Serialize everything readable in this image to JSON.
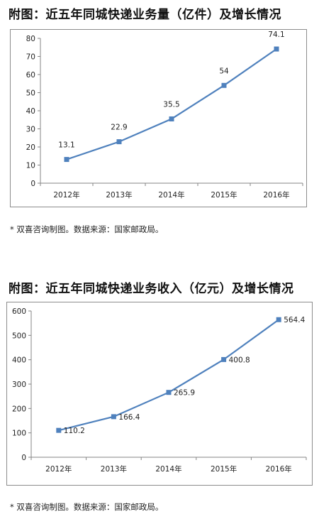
{
  "figures": [
    {
      "title": "附图：近五年同城快递业务量（亿件）及增长情况",
      "note": "* 双喜咨询制图。数据来源：国家邮政局。"
    },
    {
      "title": "附图：近五年同城快递业务收入（亿元）及增长情况",
      "note": "* 双喜咨询制图。数据来源：国家邮政局。"
    }
  ],
  "chart_data": [
    {
      "type": "line",
      "categories": [
        "2012年",
        "2013年",
        "2014年",
        "2015年",
        "2016年"
      ],
      "series": [
        {
          "values": [
            13.1,
            22.9,
            35.5,
            54,
            74.1
          ]
        }
      ],
      "data_labels": [
        "13.1",
        "22.9",
        "35.5",
        "54",
        "74.1"
      ],
      "y_ticks": [
        0,
        10,
        20,
        30,
        40,
        50,
        60,
        70,
        80
      ],
      "ylim": [
        0,
        80
      ],
      "title": "",
      "xlabel": "",
      "ylabel": "",
      "grid": false,
      "legend": "none",
      "color": "#4f81bd",
      "marker": "square"
    },
    {
      "type": "line",
      "categories": [
        "2012年",
        "2013年",
        "2014年",
        "2015年",
        "2016年"
      ],
      "series": [
        {
          "values": [
            110.2,
            166.4,
            265.9,
            400.8,
            564.4
          ]
        }
      ],
      "data_labels": [
        "110.2",
        "166.4",
        "265.9",
        "400.8",
        "564.4"
      ],
      "y_ticks": [
        0,
        100,
        200,
        300,
        400,
        500,
        600
      ],
      "ylim": [
        0,
        600
      ],
      "title": "",
      "xlabel": "",
      "ylabel": "",
      "grid": false,
      "legend": "none",
      "color": "#4f81bd",
      "marker": "square"
    }
  ]
}
